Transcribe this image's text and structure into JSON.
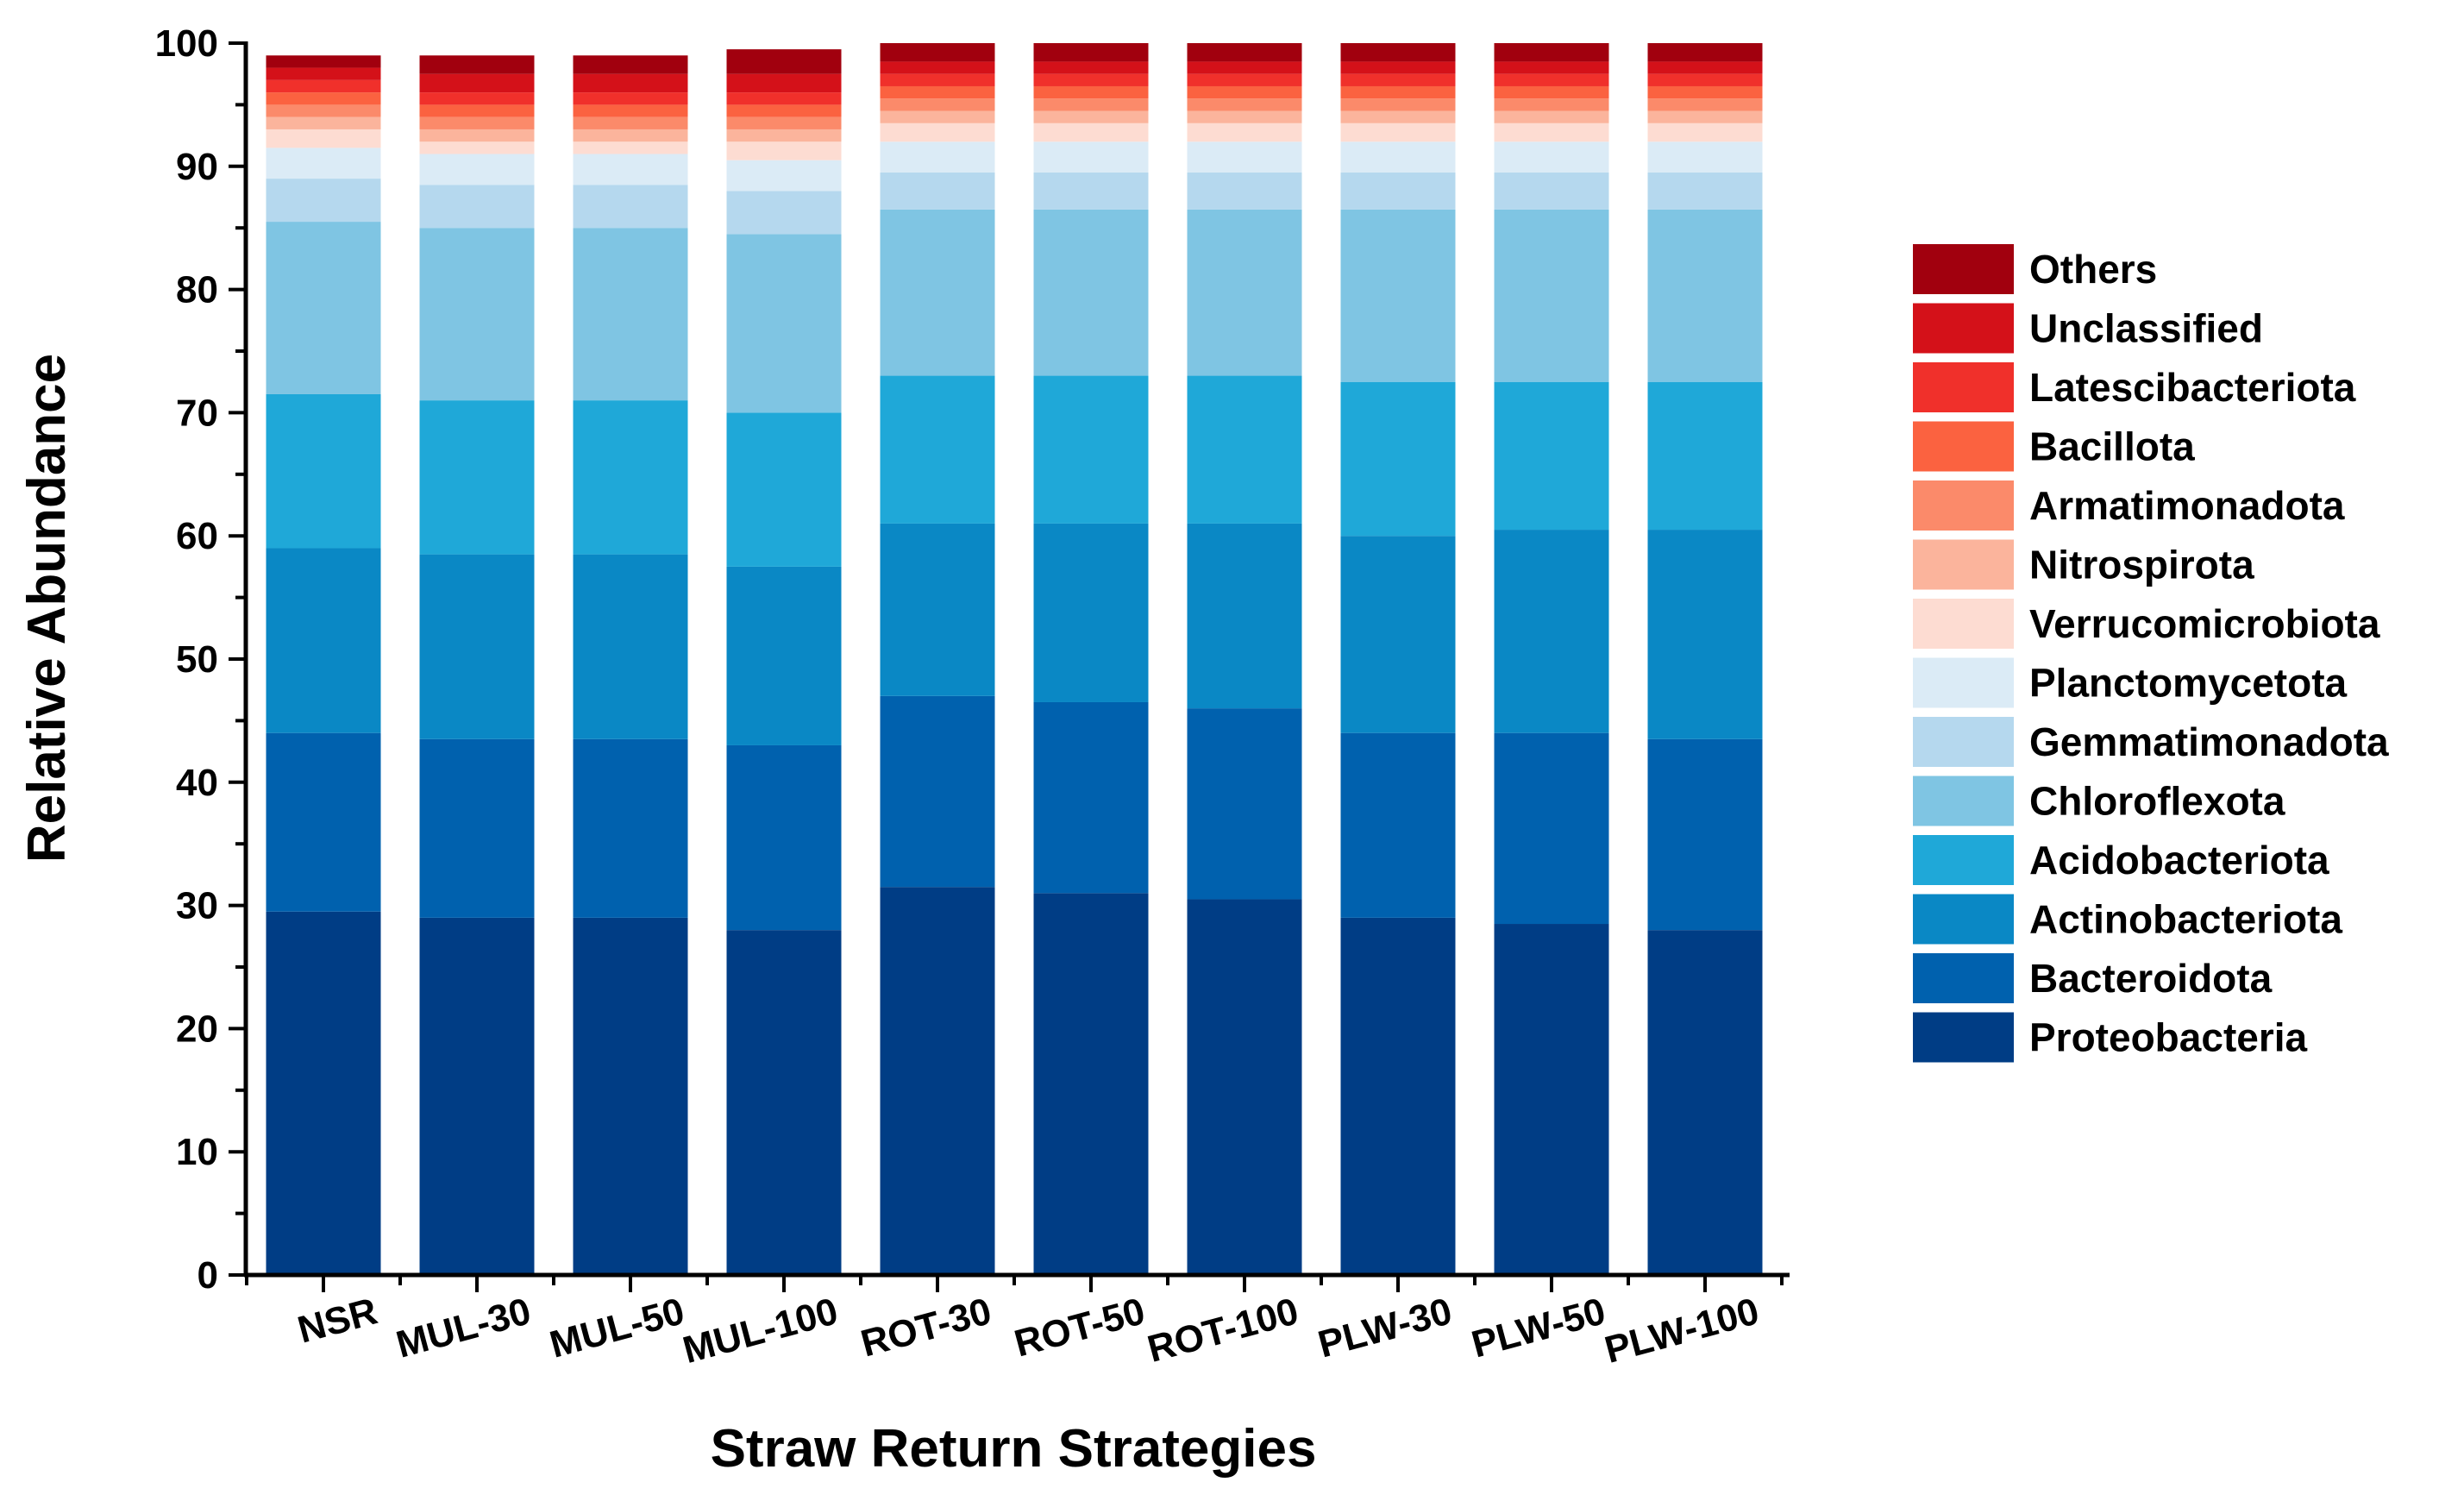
{
  "chart_data": {
    "type": "bar",
    "stacked": true,
    "title": "",
    "xlabel": "Straw Return Strategies",
    "ylabel": "Relative Abundance",
    "ylim": [
      0,
      100
    ],
    "yticks": [
      "0",
      "10",
      "20",
      "30",
      "40",
      "50",
      "60",
      "70",
      "80",
      "90",
      "100"
    ],
    "grid": false,
    "legend_position": "right",
    "categories": [
      "NSR",
      "MUL-30",
      "MUL-50",
      "MUL-100",
      "ROT-30",
      "ROT-50",
      "ROT-100",
      "PLW-30",
      "PLW-50",
      "PLW-100"
    ],
    "series": [
      {
        "name": "Proteobacteria",
        "color": "#003d85",
        "values": [
          29.5,
          29.0,
          29.0,
          28.0,
          31.5,
          31.0,
          30.5,
          29.0,
          28.5,
          28.0
        ]
      },
      {
        "name": "Bacteroidota",
        "color": "#0061ae",
        "values": [
          14.5,
          14.5,
          14.5,
          15.0,
          15.5,
          15.5,
          15.5,
          15.0,
          15.5,
          15.5
        ]
      },
      {
        "name": "Actinobacteriota",
        "color": "#0a88c5",
        "values": [
          15.0,
          15.0,
          15.0,
          14.5,
          14.0,
          14.5,
          15.0,
          16.0,
          16.5,
          17.0
        ]
      },
      {
        "name": "Acidobacteriota",
        "color": "#1fa8d8",
        "values": [
          12.5,
          12.5,
          12.5,
          12.5,
          12.0,
          12.0,
          12.0,
          12.5,
          12.0,
          12.0
        ]
      },
      {
        "name": "Chloroflexota",
        "color": "#7fc5e3",
        "values": [
          14.0,
          14.0,
          14.0,
          14.5,
          13.5,
          13.5,
          13.5,
          14.0,
          14.0,
          14.0
        ]
      },
      {
        "name": "Gemmatimonadota",
        "color": "#b5d8ee",
        "values": [
          3.5,
          3.5,
          3.5,
          3.5,
          3.0,
          3.0,
          3.0,
          3.0,
          3.0,
          3.0
        ]
      },
      {
        "name": "Planctomycetota",
        "color": "#dbebf6",
        "values": [
          2.5,
          2.5,
          2.5,
          2.5,
          2.5,
          2.5,
          2.5,
          2.5,
          2.5,
          2.5
        ]
      },
      {
        "name": "Verrucomicrobiota",
        "color": "#fddcd2",
        "values": [
          1.5,
          1.0,
          1.0,
          1.5,
          1.5,
          1.5,
          1.5,
          1.5,
          1.5,
          1.5
        ]
      },
      {
        "name": "Nitrospirota",
        "color": "#fbb49c",
        "values": [
          1.0,
          1.0,
          1.0,
          1.0,
          1.0,
          1.0,
          1.0,
          1.0,
          1.0,
          1.0
        ]
      },
      {
        "name": "Armatimonadota",
        "color": "#fb8a6a",
        "values": [
          1.0,
          1.0,
          1.0,
          1.0,
          1.0,
          1.0,
          1.0,
          1.0,
          1.0,
          1.0
        ]
      },
      {
        "name": "Bacillota",
        "color": "#fb6240",
        "values": [
          1.0,
          1.0,
          1.0,
          1.0,
          1.0,
          1.0,
          1.0,
          1.0,
          1.0,
          1.0
        ]
      },
      {
        "name": "Latescibacteriota",
        "color": "#f0302b",
        "values": [
          1.0,
          1.0,
          1.0,
          1.0,
          1.0,
          1.0,
          1.0,
          1.0,
          1.0,
          1.0
        ]
      },
      {
        "name": "Unclassified",
        "color": "#d41119",
        "values": [
          1.0,
          1.5,
          1.5,
          1.5,
          1.0,
          1.0,
          1.0,
          1.0,
          1.0,
          1.0
        ]
      },
      {
        "name": "Others",
        "color": "#a1000e",
        "values": [
          1.0,
          1.5,
          1.5,
          2.0,
          1.5,
          1.5,
          1.5,
          1.5,
          1.5,
          1.5
        ]
      }
    ]
  }
}
